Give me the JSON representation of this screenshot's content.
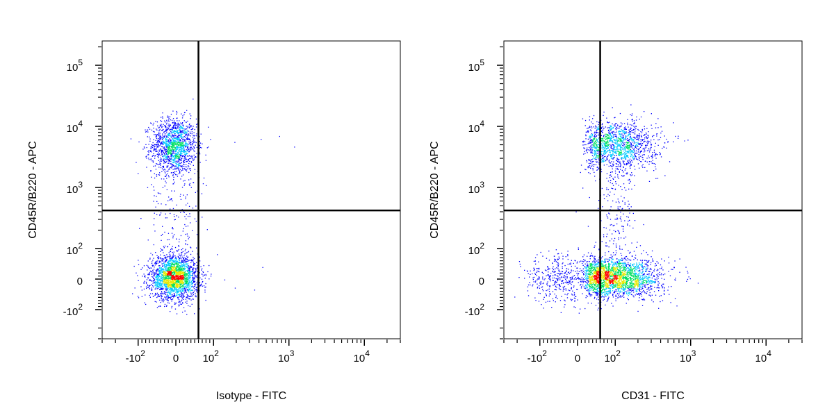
{
  "chart_data": [
    {
      "type": "scatter",
      "xlabel": "Isotype - FITC",
      "ylabel": "CD45R/B220 - APC",
      "x_scale": "biexponential",
      "y_scale": "biexponential",
      "xlim": [
        -300,
        30000
      ],
      "ylim": [
        -300,
        250000
      ],
      "x_ticks": [
        {
          "value": -100,
          "base": "-10",
          "exp": "2"
        },
        {
          "value": 0,
          "base": "0",
          "exp": ""
        },
        {
          "value": 100,
          "base": "10",
          "exp": "2"
        },
        {
          "value": 1000,
          "base": "10",
          "exp": "3"
        },
        {
          "value": 10000,
          "base": "10",
          "exp": "4"
        }
      ],
      "y_ticks": [
        {
          "value": -100,
          "base": "-10",
          "exp": "2"
        },
        {
          "value": 0,
          "base": "0",
          "exp": ""
        },
        {
          "value": 100,
          "base": "10",
          "exp": "2"
        },
        {
          "value": 1000,
          "base": "10",
          "exp": "3"
        },
        {
          "value": 10000,
          "base": "10",
          "exp": "4"
        },
        {
          "value": 100000,
          "base": "10",
          "exp": "5"
        }
      ],
      "quadrant_gate": {
        "x": 60,
        "y": 420
      },
      "grid": false,
      "populations": [
        {
          "x": -5,
          "y": 5000,
          "count": 1400,
          "x_spread": 30,
          "y_spread": 0.22
        },
        {
          "x": -5,
          "y": 5,
          "count": 2300,
          "x_spread": 32,
          "y_spread": 35
        }
      ]
    },
    {
      "type": "scatter",
      "xlabel": "CD31 - FITC",
      "ylabel": "CD45R/B220 - APC",
      "x_scale": "biexponential",
      "y_scale": "biexponential",
      "xlim": [
        -300,
        30000
      ],
      "ylim": [
        -300,
        250000
      ],
      "x_ticks": [
        {
          "value": -100,
          "base": "-10",
          "exp": "2"
        },
        {
          "value": 0,
          "base": "0",
          "exp": ""
        },
        {
          "value": 100,
          "base": "10",
          "exp": "2"
        },
        {
          "value": 1000,
          "base": "10",
          "exp": "3"
        },
        {
          "value": 10000,
          "base": "10",
          "exp": "4"
        }
      ],
      "y_ticks": [
        {
          "value": -100,
          "base": "-10",
          "exp": "2"
        },
        {
          "value": 0,
          "base": "0",
          "exp": ""
        },
        {
          "value": 100,
          "base": "10",
          "exp": "2"
        },
        {
          "value": 1000,
          "base": "10",
          "exp": "3"
        },
        {
          "value": 10000,
          "base": "10",
          "exp": "4"
        },
        {
          "value": 100000,
          "base": "10",
          "exp": "5"
        }
      ],
      "quadrant_gate": {
        "x": 60,
        "y": 420
      },
      "grid": false,
      "populations": [
        {
          "x": 100,
          "y": 5000,
          "count": 1400,
          "x_spread": 0.28,
          "y_spread": 0.2
        },
        {
          "x": 100,
          "y": 5,
          "count": 2300,
          "x_spread": 0.3,
          "y_spread": 32
        },
        {
          "x": -40,
          "y": 5,
          "count": 500,
          "x_spread": 55,
          "y_spread": 40
        }
      ]
    }
  ],
  "density_colors": [
    "#0000ff",
    "#00c8ff",
    "#00e060",
    "#e8e800",
    "#ff0000"
  ]
}
